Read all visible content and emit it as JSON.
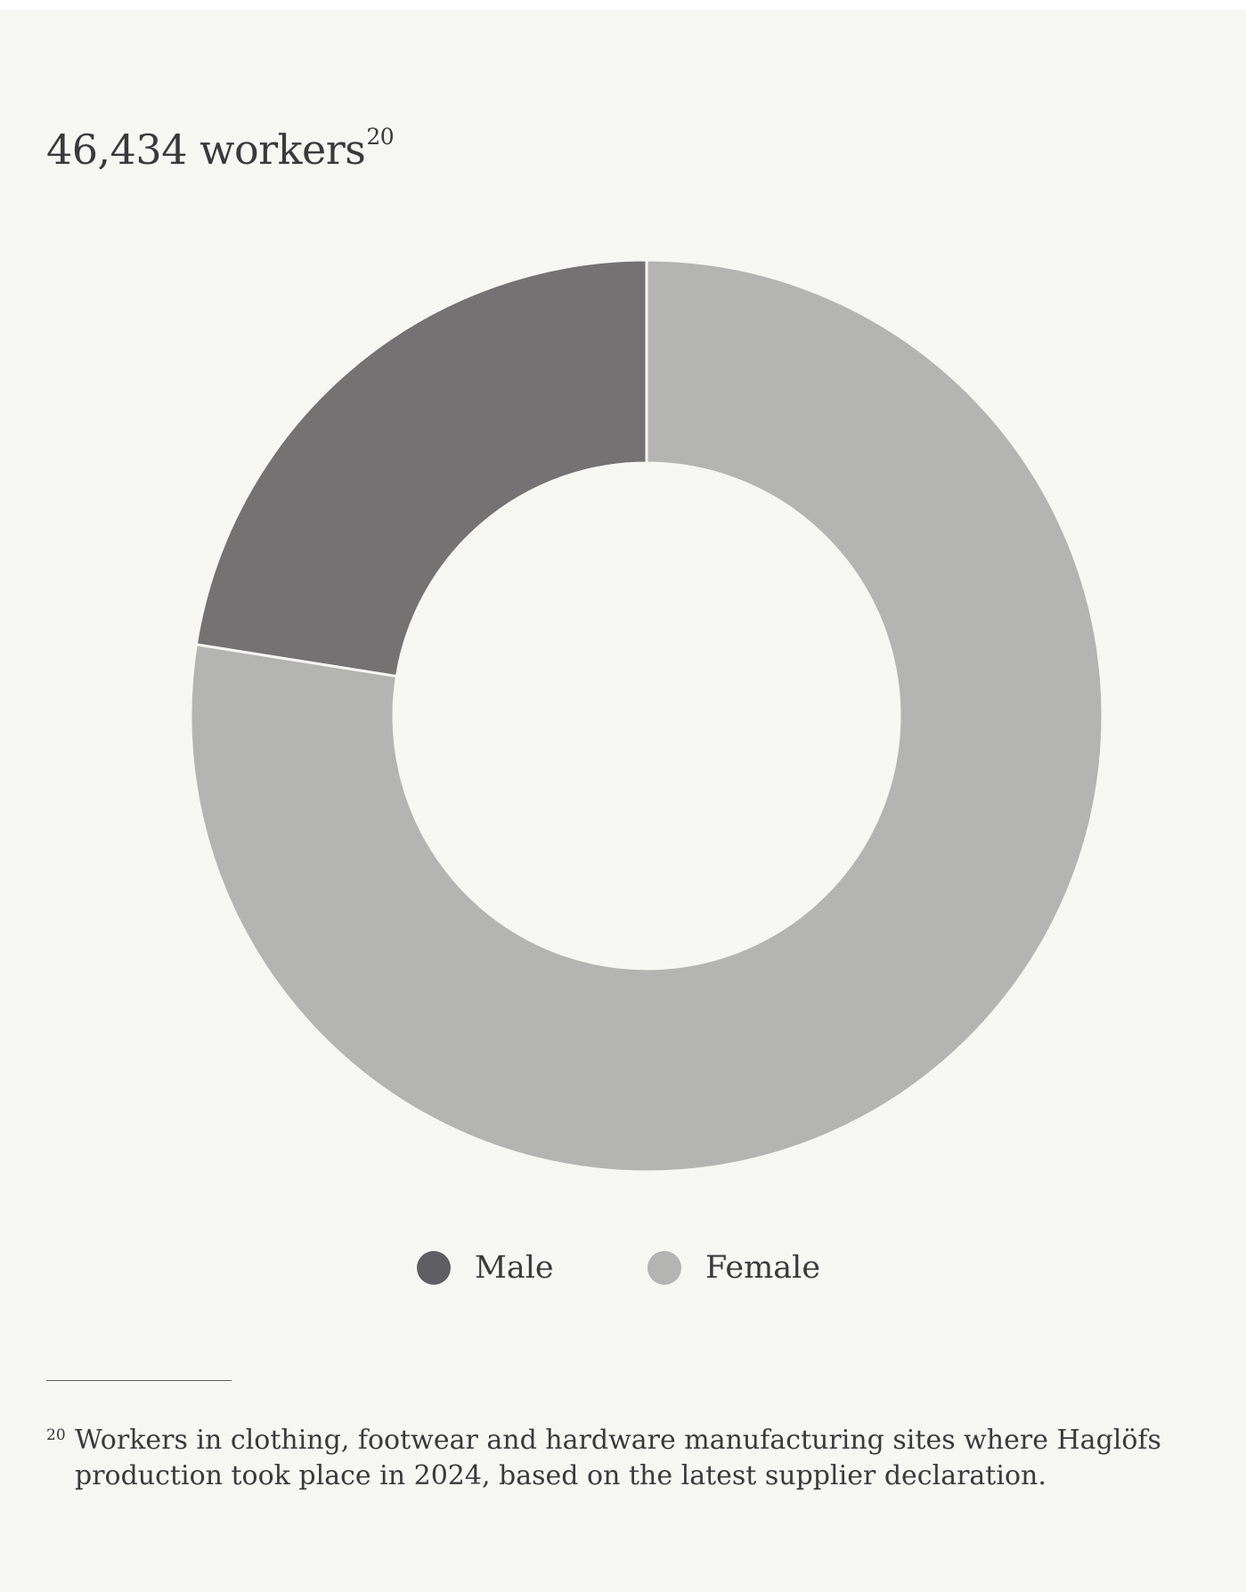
{
  "title": {
    "text": "46,434 workers",
    "footnote_ref": "20"
  },
  "chart_data": {
    "type": "pie",
    "title": "46,434 workers",
    "donut": true,
    "start": "top",
    "direction": "counter-clockwise",
    "slices": [
      {
        "label": "Male",
        "value": 22.5,
        "color": "#747273"
      },
      {
        "label": "Female",
        "value": 77.5,
        "color": "#b4b4b2"
      }
    ],
    "legend_placement": "bottom"
  },
  "legend": {
    "items": [
      {
        "label": "Male",
        "color": "#5f5f63"
      },
      {
        "label": "Female",
        "color": "#b4b4b2"
      }
    ]
  },
  "footnote": {
    "number": "20",
    "text": "Workers in clothing, footwear and hardware manufacturing sites where Haglöfs production took place in 2024, based on the latest supplier declaration."
  }
}
